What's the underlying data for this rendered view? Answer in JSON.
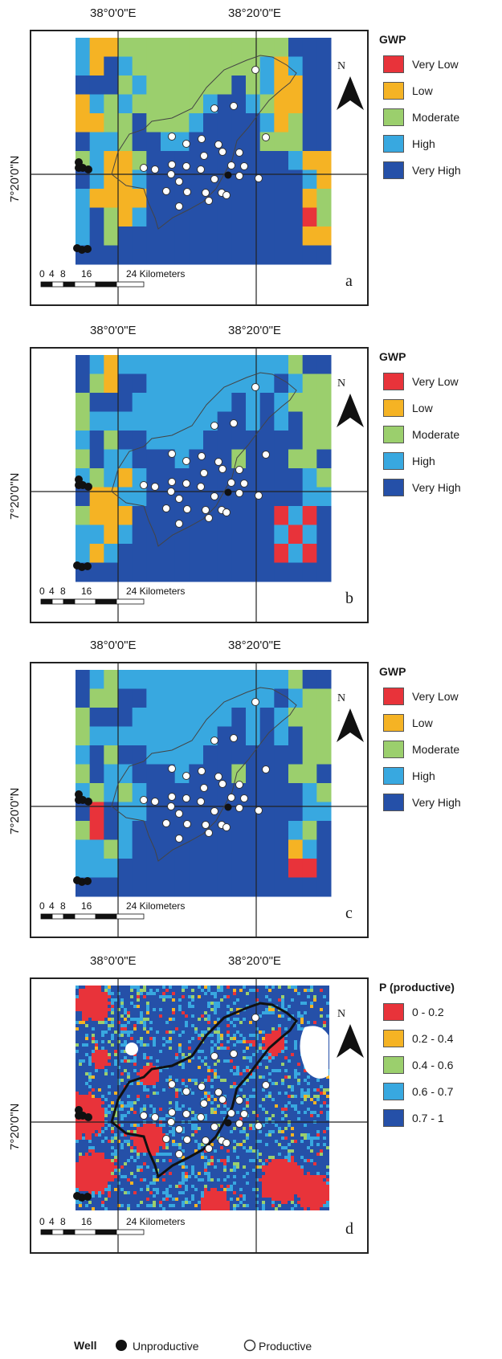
{
  "coords": {
    "lon_left": "38°0'0\"E",
    "lon_right": "38°20'0\"E",
    "lat": "7°20'0\"N"
  },
  "scale_bar": {
    "ticks": [
      "0",
      "4",
      "8",
      "16",
      "24 Kilometers"
    ]
  },
  "north_label": "N",
  "panels": [
    {
      "letter": "a",
      "legend_title": "GWP",
      "legend": [
        {
          "label": "Very Low",
          "color": "#e8333a"
        },
        {
          "label": "Low",
          "color": "#f5b324"
        },
        {
          "label": "Moderate",
          "color": "#9bcf6d"
        },
        {
          "label": "High",
          "color": "#38a8e0"
        },
        {
          "label": "Very High",
          "color": "#2550a8"
        }
      ]
    },
    {
      "letter": "b",
      "legend_title": "GWP",
      "legend": [
        {
          "label": "Very Low",
          "color": "#e8333a"
        },
        {
          "label": "Low",
          "color": "#f5b324"
        },
        {
          "label": "Moderate",
          "color": "#9bcf6d"
        },
        {
          "label": "High",
          "color": "#38a8e0"
        },
        {
          "label": "Very High",
          "color": "#2550a8"
        }
      ]
    },
    {
      "letter": "c",
      "legend_title": "GWP",
      "legend": [
        {
          "label": "Very Low",
          "color": "#e8333a"
        },
        {
          "label": "Low",
          "color": "#f5b324"
        },
        {
          "label": "Moderate",
          "color": "#9bcf6d"
        },
        {
          "label": "High",
          "color": "#38a8e0"
        },
        {
          "label": "Very High",
          "color": "#2550a8"
        }
      ]
    },
    {
      "letter": "d",
      "legend_title": "P (productive)",
      "legend": [
        {
          "label": "0 - 0.2",
          "color": "#e8333a"
        },
        {
          "label": "0.2 - 0.4",
          "color": "#f5b324"
        },
        {
          "label": "0.4 - 0.6",
          "color": "#9bcf6d"
        },
        {
          "label": "0.6 - 0.7",
          "color": "#38a8e0"
        },
        {
          "label": "0.7 - 1",
          "color": "#2550a8"
        }
      ]
    }
  ],
  "well_legend": {
    "title": "Well",
    "unproductive": "Unproductive",
    "productive": "Productive"
  }
}
